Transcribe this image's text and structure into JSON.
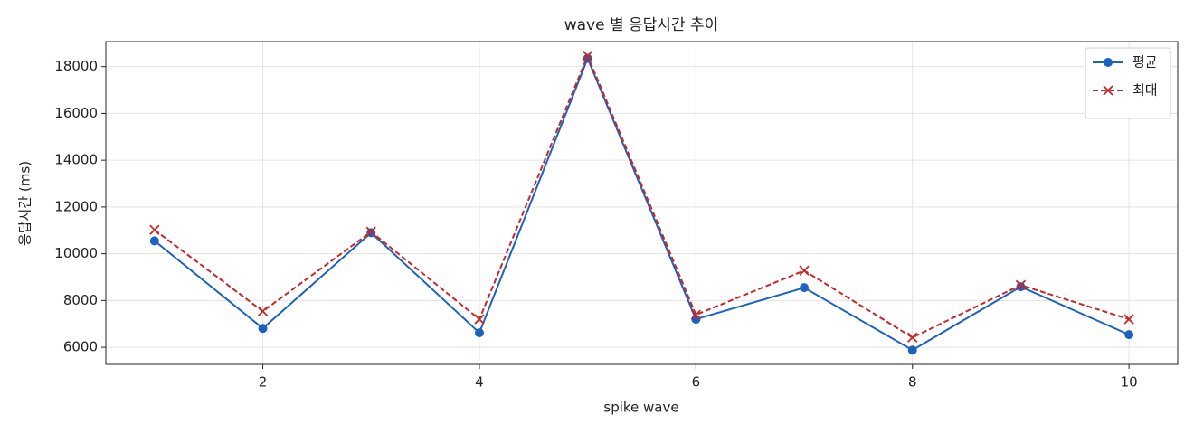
{
  "chart_data": {
    "type": "line",
    "title": "wave 별 응답시간 추이",
    "x_label": "spike wave",
    "y_label": "응답시간 (ms)",
    "x": [
      1,
      2,
      3,
      4,
      5,
      6,
      7,
      8,
      9,
      10
    ],
    "series": [
      {
        "name": "평균",
        "color": "#1b62c0",
        "marker": "circle",
        "linestyle": "solid",
        "values": [
          10550,
          6810,
          10900,
          6620,
          18350,
          7200,
          8550,
          5880,
          8590,
          6540
        ]
      },
      {
        "name": "최대",
        "color": "#c62828",
        "marker": "x",
        "linestyle": "dashed",
        "values": [
          11020,
          7540,
          10940,
          7200,
          18460,
          7390,
          9280,
          6420,
          8660,
          7200
        ]
      }
    ],
    "xlim": [
      0.55,
      10.45
    ],
    "xticks": [
      2,
      4,
      6,
      8,
      10
    ],
    "ylim": [
      5270,
      19070
    ],
    "yticks": [
      6000,
      8000,
      10000,
      12000,
      14000,
      16000,
      18000
    ],
    "grid": true,
    "legend": "upper right"
  }
}
